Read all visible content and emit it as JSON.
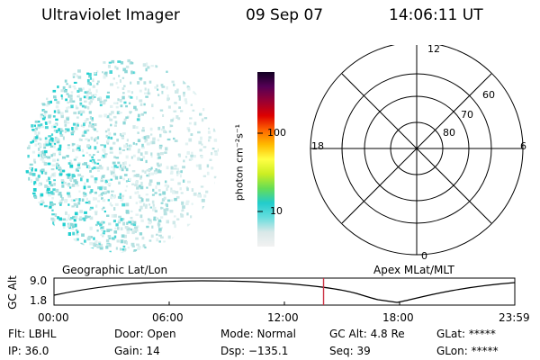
{
  "header": {
    "title": "Ultraviolet Imager",
    "date": "09 Sep 07",
    "time": "14:06:11 UT"
  },
  "colorbar": {
    "unit_label": "photon cm⁻²s⁻¹",
    "tick_100": "100",
    "tick_10": "10",
    "stops": [
      "#f2f2f2",
      "#d9e8e8",
      "#66dddd",
      "#22cccc",
      "#66dd55",
      "#ccee22",
      "#ffff44",
      "#ffbb00",
      "#ff6600",
      "#dd0000",
      "#990033",
      "#550055",
      "#110022"
    ]
  },
  "polar": {
    "mlt_top": "12",
    "mlt_bottom": "0",
    "mlt_left": "18",
    "mlt_right": "6",
    "lat_60": "60",
    "lat_70": "70",
    "lat_80": "80"
  },
  "timeline": {
    "axis_label": "GC Alt",
    "y_top": "9.0",
    "y_bottom": "1.8",
    "left_label": "Geographic Lat/Lon",
    "right_label": "Apex MLat/MLT",
    "current_time_fraction": 0.585,
    "x_ticks": [
      "00:00",
      "06:00",
      "12:00",
      "18:00",
      "23:59"
    ]
  },
  "info": {
    "flt": "Flt: LBHL",
    "ip": "IP: 36.0",
    "door": "Door: Open",
    "gain": "Gain: 14",
    "mode": "Mode: Normal",
    "dsp": "Dsp: −135.1",
    "gc_alt": "GC Alt: 4.8 Re",
    "seq": "Seq: 39",
    "glat": "GLat: *****",
    "glon": "GLon: *****"
  }
}
